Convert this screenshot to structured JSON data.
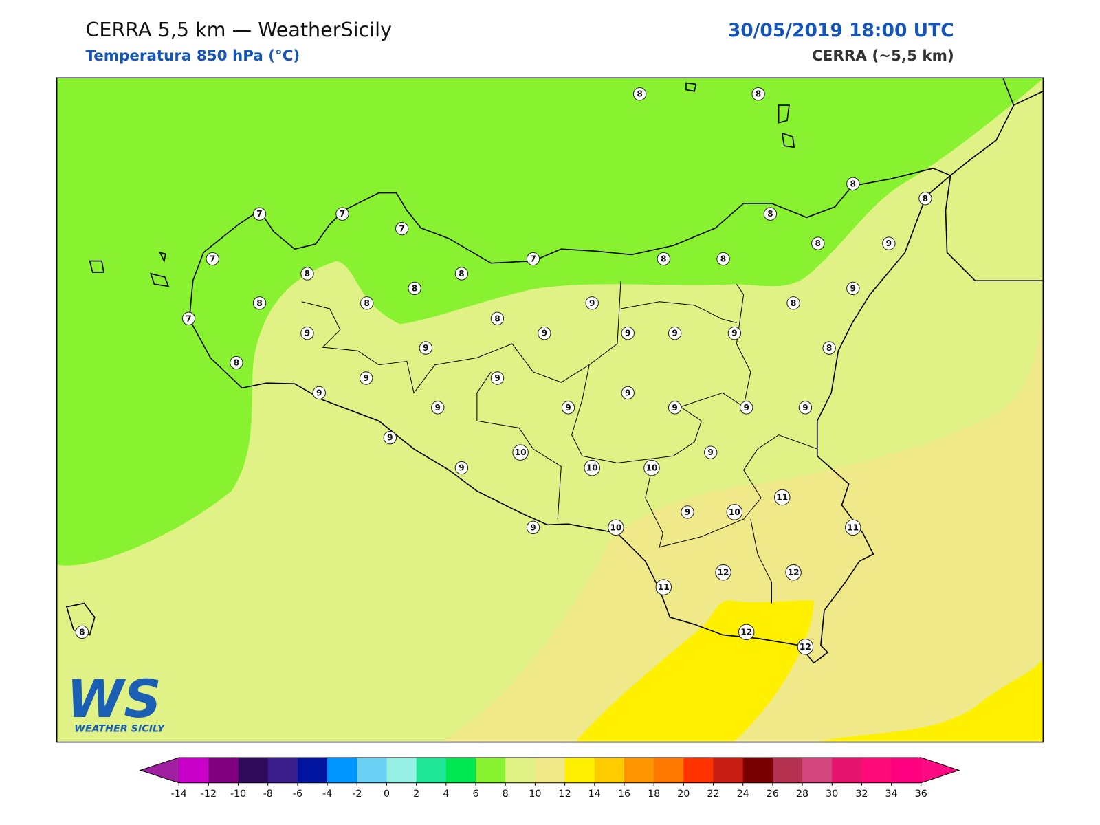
{
  "header": {
    "title": "CERRA 5,5 km — WeatherSicily",
    "subtitle": "Temperatura 850 hPa (°C)",
    "date": "30/05/2019 18:00 UTC",
    "model": "CERRA (~5,5 km)"
  },
  "logo": {
    "mark": "WS",
    "name": "WEATHER SICILY"
  },
  "stations": {
    "values": [
      8,
      8,
      8,
      8,
      7,
      7,
      7,
      7,
      7,
      8,
      8,
      8,
      8,
      9,
      8,
      8,
      8,
      9,
      8,
      8,
      9,
      8,
      7,
      8,
      9,
      9,
      9,
      9,
      9,
      9,
      8,
      8,
      9,
      9,
      9,
      9,
      9,
      9,
      9,
      9,
      9,
      9,
      9,
      10,
      9,
      10,
      10,
      11,
      9,
      10,
      9,
      10,
      11,
      12,
      12,
      11,
      12,
      12,
      8
    ]
  },
  "colorbar": {
    "ticks": [
      -14,
      -12,
      -10,
      -8,
      -6,
      -4,
      -2,
      0,
      2,
      4,
      6,
      8,
      10,
      12,
      14,
      16,
      18,
      20,
      22,
      24,
      26,
      28,
      30,
      32,
      34,
      36
    ],
    "colors": [
      "#c800c8",
      "#800080",
      "#2e0a5a",
      "#3c1f8c",
      "#0014a0",
      "#0096ff",
      "#6cd2f5",
      "#96f0e6",
      "#1ee696",
      "#00e650",
      "#88f231",
      "#e0f285",
      "#efe989",
      "#fff000",
      "#ffcc00",
      "#ff9600",
      "#ff7800",
      "#ff3200",
      "#c81e14",
      "#780000",
      "#b43250",
      "#d2467d",
      "#e6146e",
      "#ff0a78",
      "#ff0080"
    ],
    "under": "#a01ea0",
    "over": "#ff0a82"
  }
}
